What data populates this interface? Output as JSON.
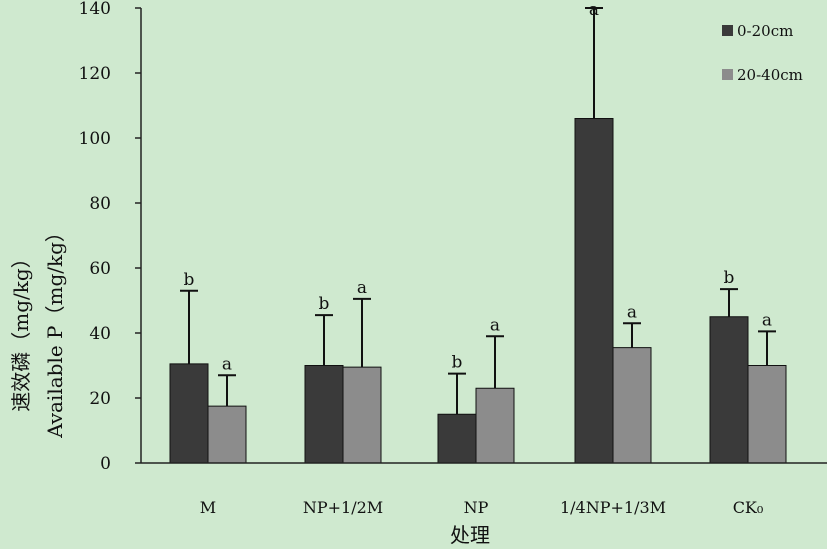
{
  "chart_data": {
    "type": "bar",
    "categories": [
      "M",
      "NP+1/2M",
      "NP",
      "1/4NP+1/3M",
      "CK₀"
    ],
    "series": [
      {
        "name": "0-20cm",
        "color": "#3a3a3a",
        "values": [
          30.5,
          30,
          15,
          106,
          45
        ],
        "error_upper": [
          53,
          45.5,
          27.5,
          140,
          53.5
        ],
        "sig": [
          "b",
          "b",
          "b",
          "a",
          "b"
        ]
      },
      {
        "name": "20-40cm",
        "color": "#8c8c8c",
        "values": [
          17.5,
          29.5,
          23,
          35.5,
          30
        ],
        "error_upper": [
          27,
          50.5,
          39,
          43,
          40.5
        ],
        "sig": [
          "a",
          "a",
          "a",
          "a",
          "a"
        ]
      }
    ],
    "ylim": [
      0,
      140
    ],
    "yticks": [
      0,
      20,
      40,
      60,
      80,
      100,
      120,
      140
    ],
    "ylabel_cn": "速效磷（mg/kg）",
    "ylabel_en": "Available P（mg/kg）",
    "xlabel": "处理",
    "legend_position": "top-right",
    "grid": false
  }
}
